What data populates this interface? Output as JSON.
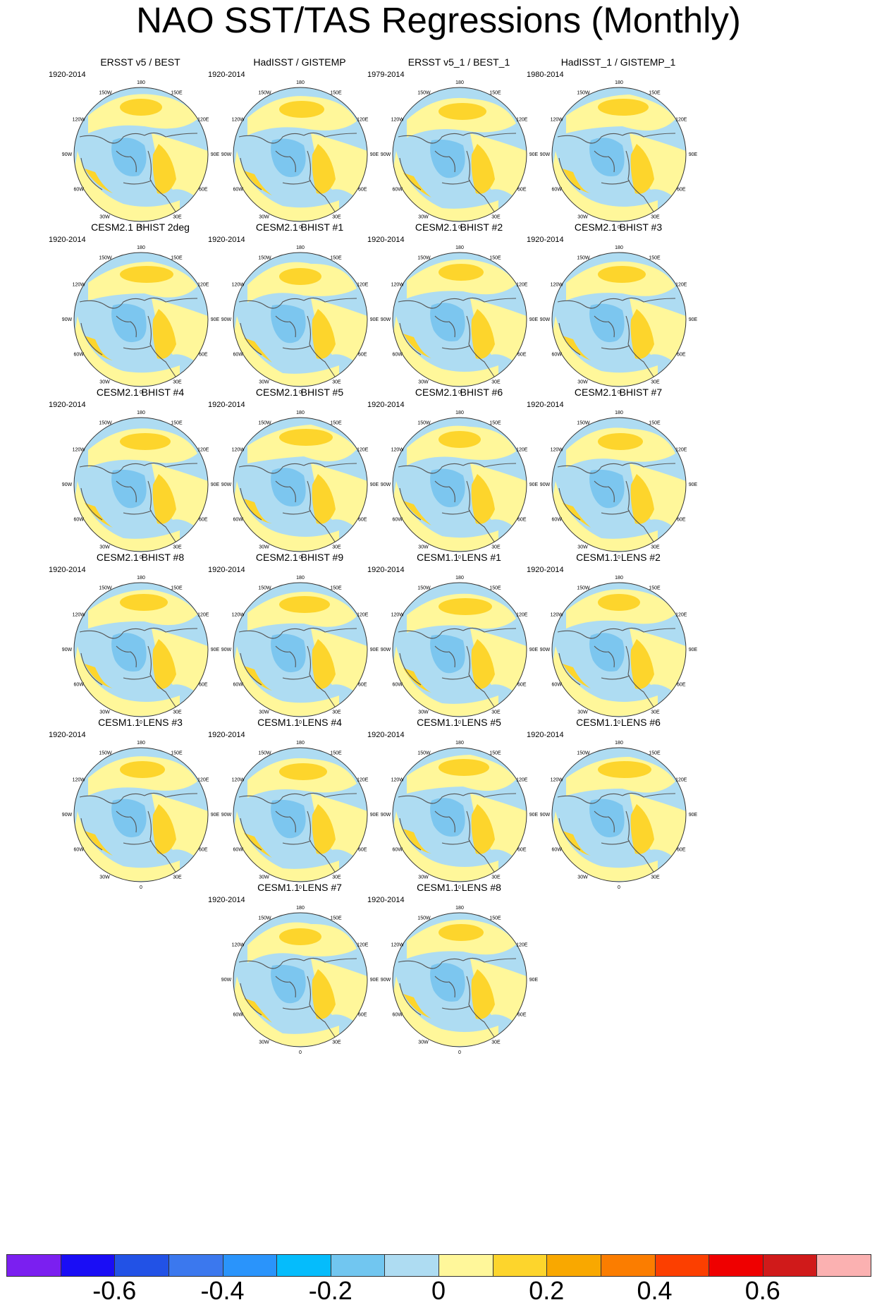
{
  "title": "NAO SST/TAS Regressions (Monthly)",
  "lon_labels": [
    "180",
    "150E",
    "120E",
    "90E",
    "60E",
    "30E",
    "0",
    "30W",
    "60W",
    "90W",
    "120W",
    "150W"
  ],
  "panels": [
    {
      "title": "ERSST v5 / BEST",
      "period": "1920-2014"
    },
    {
      "title": "HadISST / GISTEMP",
      "period": "1920-2014"
    },
    {
      "title": "ERSST v5_1 / BEST_1",
      "period": "1979-2014"
    },
    {
      "title": "HadISST_1 / GISTEMP_1",
      "period": "1980-2014"
    },
    {
      "title": "CESM2.1 BHIST 2deg",
      "period": "1920-2014"
    },
    {
      "title": "CESM2.1 BHIST #1",
      "period": "1920-2014"
    },
    {
      "title": "CESM2.1 BHIST #2",
      "period": "1920-2014"
    },
    {
      "title": "CESM2.1 BHIST #3",
      "period": "1920-2014"
    },
    {
      "title": "CESM2.1 BHIST #4",
      "period": "1920-2014"
    },
    {
      "title": "CESM2.1 BHIST #5",
      "period": "1920-2014"
    },
    {
      "title": "CESM2.1 BHIST #6",
      "period": "1920-2014"
    },
    {
      "title": "CESM2.1 BHIST #7",
      "period": "1920-2014"
    },
    {
      "title": "CESM2.1 BHIST #8",
      "period": "1920-2014"
    },
    {
      "title": "CESM2.1 BHIST #9",
      "period": "1920-2014"
    },
    {
      "title": "CESM1.1 LENS #1",
      "period": "1920-2014"
    },
    {
      "title": "CESM1.1 LENS #2",
      "period": "1920-2014"
    },
    {
      "title": "CESM1.1 LENS #3",
      "period": "1920-2014"
    },
    {
      "title": "CESM1.1 LENS #4",
      "period": "1920-2014"
    },
    {
      "title": "CESM1.1 LENS #5",
      "period": "1920-2014"
    },
    {
      "title": "CESM1.1 LENS #6",
      "period": "1920-2014"
    },
    {
      "title": "CESM1.1 LENS #7",
      "period": "1920-2014"
    },
    {
      "title": "CESM1.1 LENS #8",
      "period": "1920-2014"
    }
  ],
  "colors": {
    "neg_weak": "#aedcf2",
    "neg_mod": "#7cc6ef",
    "pos_weak": "#fff79a",
    "pos_mod": "#fdd52c",
    "pos_strong": "#f9a800",
    "coast": "#555555",
    "outline": "#333333"
  },
  "colorbar": {
    "colors": [
      "#7b1ff0",
      "#1a0df5",
      "#2252e6",
      "#3b78ee",
      "#2a94fb",
      "#05bcfc",
      "#71c6f0",
      "#aedcf2",
      "#fff79a",
      "#fdd52c",
      "#f9a800",
      "#fb7d00",
      "#fc3f00",
      "#ef0000",
      "#d01a1a",
      "#fbb1b1"
    ],
    "labels": [
      "-0.6",
      "-0.4",
      "-0.2",
      "0",
      "0.2",
      "0.4",
      "0.6"
    ]
  }
}
